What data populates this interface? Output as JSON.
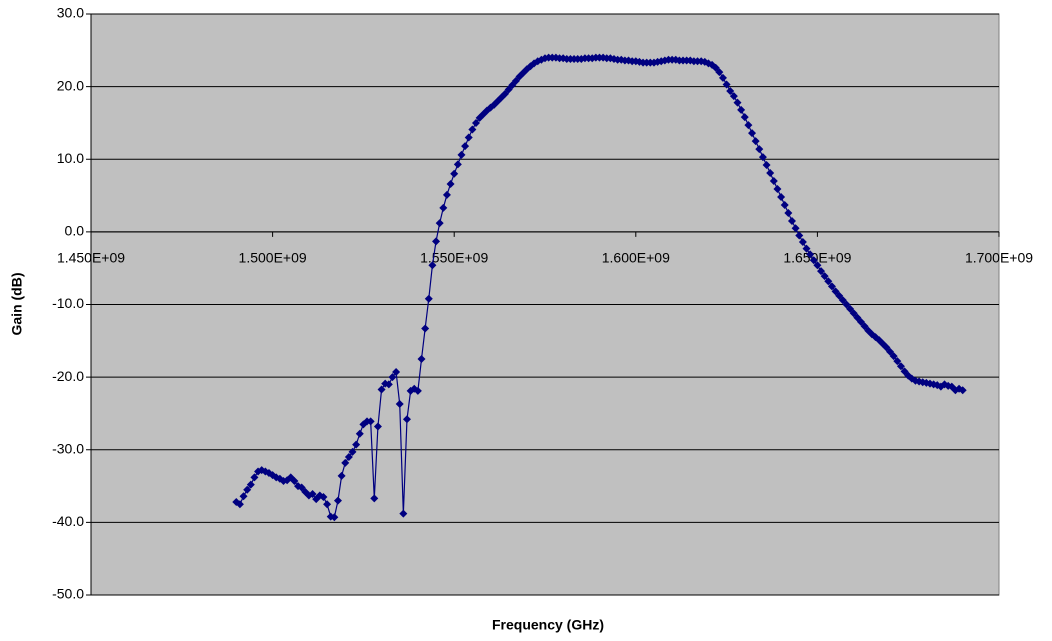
{
  "chart_data": {
    "type": "scatter",
    "xlabel": "Frequency (GHz)",
    "ylabel": "Gain (dB)",
    "xlim": [
      1450000000,
      1700000000
    ],
    "xticks": [
      {
        "value": 1450000000,
        "label": "1.450E+09"
      },
      {
        "value": 1500000000,
        "label": "1.500E+09"
      },
      {
        "value": 1550000000,
        "label": "1.550E+09"
      },
      {
        "value": 1600000000,
        "label": "1.600E+09"
      },
      {
        "value": 1650000000,
        "label": "1.650E+09"
      },
      {
        "value": 1700000000,
        "label": "1.700E+09"
      }
    ],
    "ylim": [
      -50,
      30
    ],
    "yticks": [
      {
        "value": -50,
        "label": "-50.0"
      },
      {
        "value": -40,
        "label": "-40.0"
      },
      {
        "value": -30,
        "label": "-30.0"
      },
      {
        "value": -20,
        "label": "-20.0"
      },
      {
        "value": -10,
        "label": "-10.0"
      },
      {
        "value": 0,
        "label": "0.0"
      },
      {
        "value": 10,
        "label": "10.0"
      },
      {
        "value": 20,
        "label": "20.0"
      },
      {
        "value": 30,
        "label": "30.0"
      }
    ],
    "grid": true,
    "background": "#c0c0c0",
    "x": [
      1490000000,
      1491000000,
      1492000000,
      1493000000,
      1494000000,
      1495000000,
      1496000000,
      1497000000,
      1498000000,
      1499000000,
      1500000000,
      1501000000,
      1502000000,
      1503000000,
      1504000000,
      1505000000,
      1506000000,
      1507000000,
      1508000000,
      1509000000,
      1510000000,
      1511000000,
      1512000000,
      1513000000,
      1514000000,
      1515000000,
      1516000000,
      1517000000,
      1518000000,
      1519000000,
      1520000000,
      1521000000,
      1522000000,
      1523000000,
      1524000000,
      1525000000,
      1526000000,
      1527000000,
      1528000000,
      1529000000,
      1530000000,
      1531000000,
      1532000000,
      1533000000,
      1534000000,
      1535000000,
      1536000000,
      1537000000,
      1538000000,
      1539000000,
      1540000000,
      1541000000,
      1542000000,
      1543000000,
      1544000000,
      1545000000,
      1546000000,
      1547000000,
      1548000000,
      1549000000,
      1550000000,
      1551000000,
      1552000000,
      1553000000,
      1554000000,
      1555000000,
      1556000000,
      1557000000,
      1558000000,
      1559000000,
      1560000000,
      1561000000,
      1562000000,
      1563000000,
      1564000000,
      1565000000,
      1566000000,
      1567000000,
      1568000000,
      1569000000,
      1570000000,
      1571000000,
      1572000000,
      1573000000,
      1574000000,
      1575000000,
      1576000000,
      1577000000,
      1578000000,
      1579000000,
      1580000000,
      1581000000,
      1582000000,
      1583000000,
      1584000000,
      1585000000,
      1586000000,
      1587000000,
      1588000000,
      1589000000,
      1590000000,
      1591000000,
      1592000000,
      1593000000,
      1594000000,
      1595000000,
      1596000000,
      1597000000,
      1598000000,
      1599000000,
      1600000000,
      1601000000,
      1602000000,
      1603000000,
      1604000000,
      1605000000,
      1606000000,
      1607000000,
      1608000000,
      1609000000,
      1610000000,
      1611000000,
      1612000000,
      1613000000,
      1614000000,
      1615000000,
      1616000000,
      1617000000,
      1618000000,
      1619000000,
      1620000000,
      1621000000,
      1622000000,
      1623000000,
      1624000000,
      1625000000,
      1626000000,
      1627000000,
      1628000000,
      1629000000,
      1630000000,
      1631000000,
      1632000000,
      1633000000,
      1634000000,
      1635000000,
      1636000000,
      1637000000,
      1638000000,
      1639000000,
      1640000000,
      1641000000,
      1642000000,
      1643000000,
      1644000000,
      1645000000,
      1646000000,
      1647000000,
      1648000000,
      1649000000,
      1650000000,
      1651000000,
      1652000000,
      1653000000,
      1654000000,
      1655000000,
      1656000000,
      1657000000,
      1658000000,
      1659000000,
      1660000000,
      1661000000,
      1662000000,
      1663000000,
      1664000000,
      1665000000,
      1666000000,
      1667000000,
      1668000000,
      1669000000,
      1670000000,
      1671000000,
      1672000000,
      1673000000,
      1674000000,
      1675000000,
      1676000000,
      1677000000,
      1678000000,
      1679000000,
      1680000000,
      1681000000,
      1682000000,
      1683000000,
      1684000000,
      1685000000,
      1686000000,
      1687000000,
      1688000000,
      1689000000,
      1690000000
    ],
    "series": [
      {
        "color": "#000080",
        "values": [
          -37.2,
          -37.5,
          -36.4,
          -35.5,
          -34.8,
          -33.8,
          -33.0,
          -32.8,
          -33.0,
          -33.2,
          -33.5,
          -33.8,
          -34.0,
          -34.3,
          -34.2,
          -33.8,
          -34.3,
          -35.0,
          -35.2,
          -35.8,
          -36.3,
          -36.1,
          -36.8,
          -36.3,
          -36.5,
          -37.5,
          -39.2,
          -39.3,
          -37.0,
          -33.6,
          -31.8,
          -31.0,
          -30.3,
          -29.3,
          -27.8,
          -26.5,
          -26.1,
          -26.1,
          -36.7,
          -26.8,
          -21.7,
          -20.9,
          -21.0,
          -20.0,
          -19.3,
          -23.7,
          -38.8,
          -25.8,
          -21.9,
          -21.6,
          -21.9,
          -17.5,
          -13.3,
          -9.2,
          -4.6,
          -1.3,
          1.2,
          3.3,
          5.1,
          6.6,
          8.0,
          9.3,
          10.6,
          11.8,
          13.0,
          14.1,
          15.0,
          15.7,
          16.2,
          16.7,
          17.1,
          17.5,
          18.0,
          18.5,
          19.0,
          19.6,
          20.2,
          20.8,
          21.4,
          21.9,
          22.4,
          22.8,
          23.2,
          23.5,
          23.7,
          23.9,
          24.0,
          24.0,
          24.0,
          23.9,
          23.9,
          23.8,
          23.8,
          23.8,
          23.8,
          23.8,
          23.9,
          23.9,
          23.9,
          24.0,
          24.0,
          24.0,
          23.9,
          23.9,
          23.8,
          23.7,
          23.7,
          23.6,
          23.6,
          23.5,
          23.5,
          23.4,
          23.3,
          23.3,
          23.3,
          23.3,
          23.4,
          23.5,
          23.6,
          23.7,
          23.7,
          23.7,
          23.6,
          23.6,
          23.6,
          23.6,
          23.5,
          23.5,
          23.5,
          23.4,
          23.2,
          23.0,
          22.6,
          22.0,
          21.2,
          20.3,
          19.4,
          18.7,
          17.8,
          16.8,
          15.8,
          14.7,
          13.6,
          12.5,
          11.4,
          10.3,
          9.2,
          8.1,
          7.0,
          5.9,
          4.8,
          3.7,
          2.6,
          1.5,
          0.5,
          -0.5,
          -1.4,
          -2.3,
          -3.1,
          -3.9,
          -4.6,
          -5.4,
          -6.1,
          -6.8,
          -7.5,
          -8.2,
          -8.8,
          -9.4,
          -10.0,
          -10.6,
          -11.2,
          -11.8,
          -12.4,
          -13.0,
          -13.6,
          -14.1,
          -14.5,
          -14.9,
          -15.4,
          -15.9,
          -16.5,
          -17.1,
          -17.8,
          -18.5,
          -19.2,
          -19.8,
          -20.2,
          -20.5,
          -20.6,
          -20.7,
          -20.8,
          -20.9,
          -21.0,
          -21.1,
          -21.3,
          -21.0,
          -21.2,
          -21.3,
          -21.8,
          -21.6,
          -21.8
        ]
      }
    ]
  }
}
